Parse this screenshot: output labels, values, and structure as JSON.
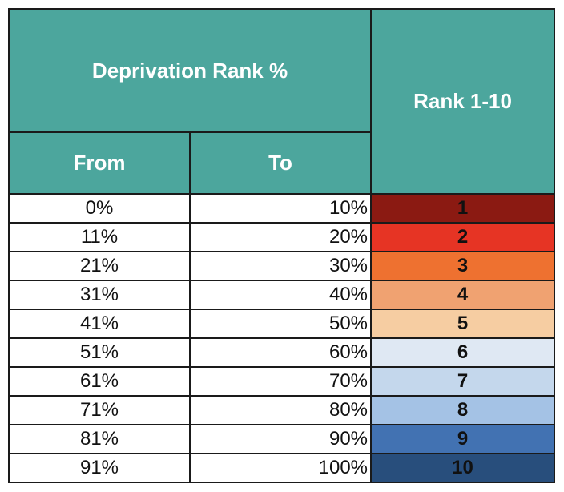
{
  "header": {
    "group_title": "Deprivation Rank %",
    "from_label": "From",
    "to_label": "To",
    "rank_label": "Rank 1-10"
  },
  "rows": [
    {
      "from": "0%",
      "to": "10%",
      "rank": "1",
      "color": "#8b1a12"
    },
    {
      "from": "11%",
      "to": "20%",
      "rank": "2",
      "color": "#e63424"
    },
    {
      "from": "21%",
      "to": "30%",
      "rank": "3",
      "color": "#ee7130"
    },
    {
      "from": "31%",
      "to": "40%",
      "rank": "4",
      "color": "#f0a271"
    },
    {
      "from": "41%",
      "to": "50%",
      "rank": "5",
      "color": "#f6cda2"
    },
    {
      "from": "51%",
      "to": "60%",
      "rank": "6",
      "color": "#dfe8f3"
    },
    {
      "from": "61%",
      "to": "70%",
      "rank": "7",
      "color": "#c4d7ec"
    },
    {
      "from": "71%",
      "to": "80%",
      "rank": "8",
      "color": "#a4c2e5"
    },
    {
      "from": "81%",
      "to": "90%",
      "rank": "9",
      "color": "#4272b2"
    },
    {
      "from": "91%",
      "to": "100%",
      "rank": "10",
      "color": "#284e7c"
    }
  ],
  "colors": {
    "header_background": "#4ca69d",
    "header_text": "#ffffff",
    "grid_lines": "#1a1a1a"
  }
}
